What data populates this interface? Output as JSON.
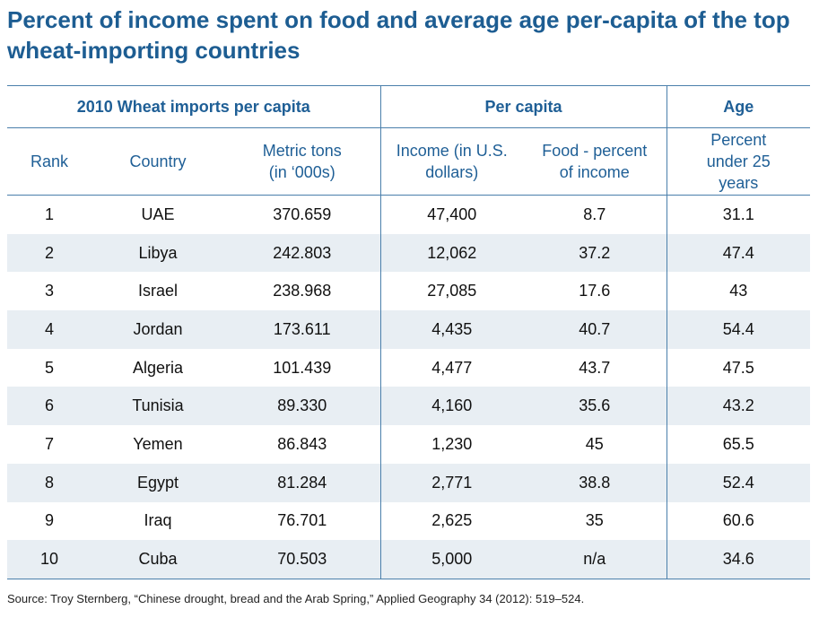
{
  "title": "Percent of income spent on food and average age per-capita of the top wheat-importing countries",
  "colors": {
    "title": "#1d5d92",
    "rules": "#4a7fab",
    "stripe": "#e8eef3"
  },
  "chart_data": {
    "type": "table",
    "group_headers": [
      "2010 Wheat imports per capita",
      "Per capita",
      "Age"
    ],
    "columns": [
      "Rank",
      "Country",
      "Metric tons (in ‘000s)",
      "Income (in U.S. dollars)",
      "Food - percent of income",
      "Percent under 25 years"
    ],
    "rows": [
      [
        "1",
        "UAE",
        "370.659",
        "47,400",
        "8.7",
        "31.1"
      ],
      [
        "2",
        "Libya",
        "242.803",
        "12,062",
        "37.2",
        "47.4"
      ],
      [
        "3",
        "Israel",
        "238.968",
        "27,085",
        "17.6",
        "43"
      ],
      [
        "4",
        "Jordan",
        "173.611",
        "4,435",
        "40.7",
        "54.4"
      ],
      [
        "5",
        "Algeria",
        "101.439",
        "4,477",
        "43.7",
        "47.5"
      ],
      [
        "6",
        "Tunisia",
        "89.330",
        "4,160",
        "35.6",
        "43.2"
      ],
      [
        "7",
        "Yemen",
        "86.843",
        "1,230",
        "45",
        "65.5"
      ],
      [
        "8",
        "Egypt",
        "81.284",
        "2,771",
        "38.8",
        "52.4"
      ],
      [
        "9",
        "Iraq",
        "76.701",
        "2,625",
        "35",
        "60.6"
      ],
      [
        "10",
        "Cuba",
        "70.503",
        "5,000",
        "n/a",
        "34.6"
      ]
    ]
  },
  "source": "Source:  Troy Sternberg, “Chinese drought, bread and the Arab Spring,” Applied Geography 34 (2012): 519–524."
}
